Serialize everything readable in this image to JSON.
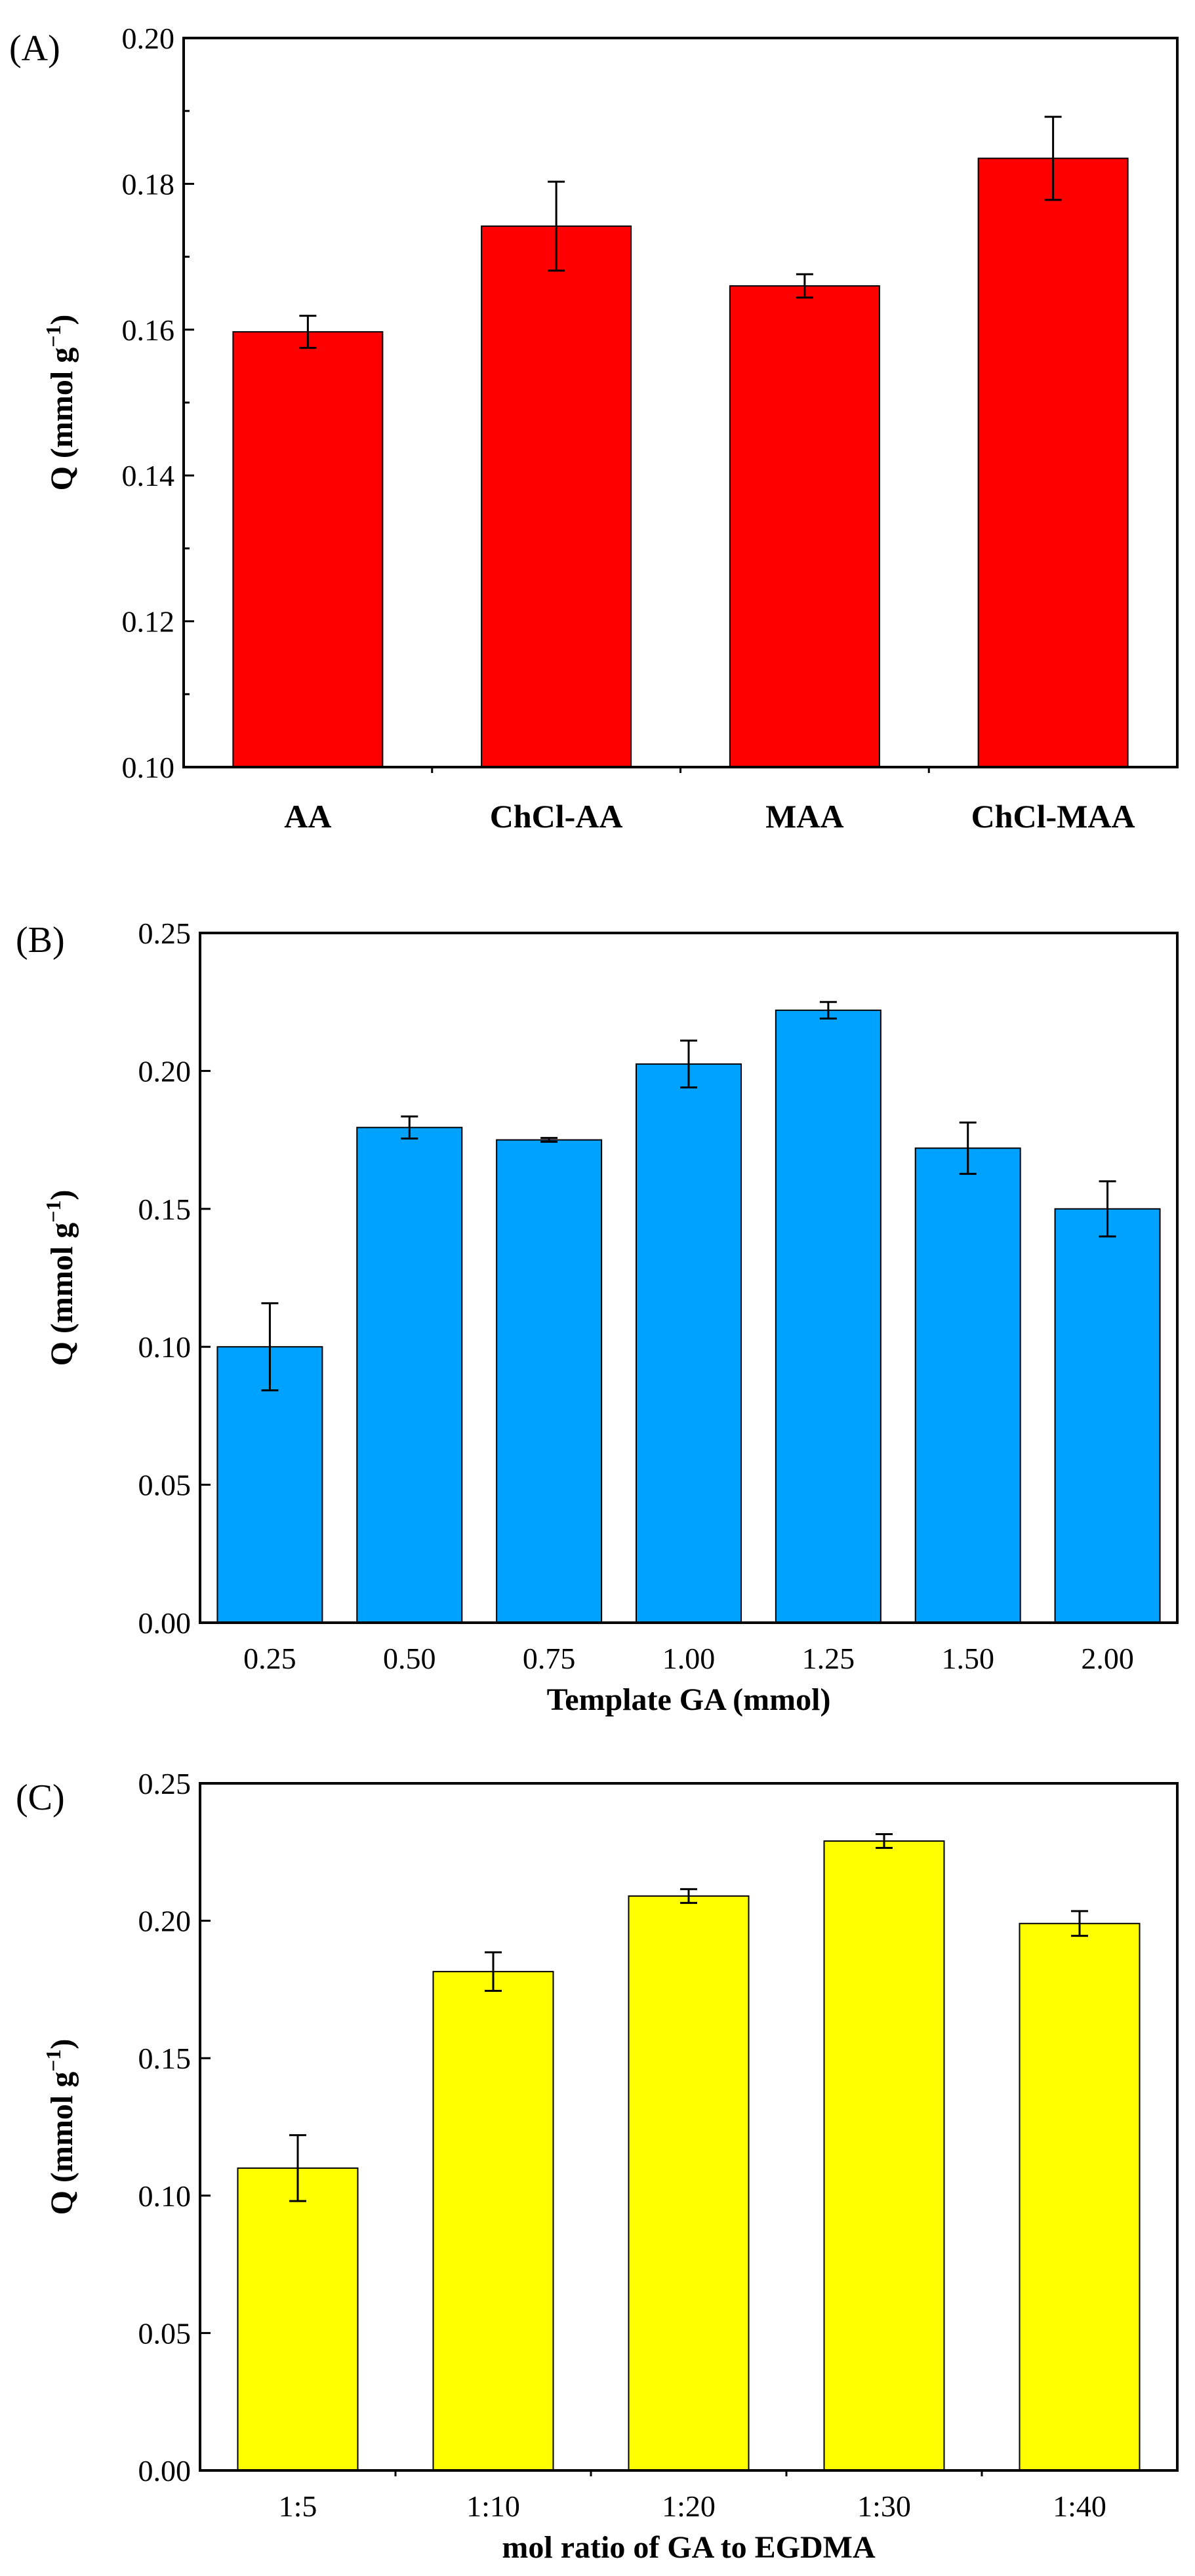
{
  "chart_data": [
    {
      "type": "bar",
      "panel_label": "(A)",
      "ylabel_main": "Q (mmol g",
      "ylabel_sup": "−1",
      "ylabel_close": ")",
      "xlabel": "",
      "ylim": [
        0.1,
        0.2
      ],
      "yticks": [
        "0.10",
        "0.12",
        "0.14",
        "0.16",
        "0.18",
        "0.20"
      ],
      "categories": [
        "AA",
        "ChCl-AA",
        "MAA",
        "ChCl-MAA"
      ],
      "values": [
        0.1597,
        0.1742,
        0.166,
        0.1835
      ],
      "errors": [
        0.0022,
        0.0061,
        0.0016,
        0.0057
      ],
      "bar_color": "#ff0000"
    },
    {
      "type": "bar",
      "panel_label": "(B)",
      "ylabel_main": "Q (mmol g",
      "ylabel_sup": "−1",
      "ylabel_close": ")",
      "xlabel": "Template GA (mmol)",
      "ylim": [
        0.0,
        0.25
      ],
      "yticks": [
        "0.00",
        "0.05",
        "0.10",
        "0.15",
        "0.20",
        "0.25"
      ],
      "categories": [
        "0.25",
        "0.50",
        "0.75",
        "1.00",
        "1.25",
        "1.50",
        "2.00"
      ],
      "values": [
        0.1,
        0.1795,
        0.175,
        0.2025,
        0.222,
        0.172,
        0.15
      ],
      "errors": [
        0.0158,
        0.004,
        0.0007,
        0.0085,
        0.003,
        0.0093,
        0.01
      ],
      "bar_color": "#00a2ff"
    },
    {
      "type": "bar",
      "panel_label": "(C)",
      "ylabel_main": "Q (mmol g",
      "ylabel_sup": "−1",
      "ylabel_close": ")",
      "xlabel": "mol ratio of GA to EGDMA",
      "ylim": [
        0.0,
        0.25
      ],
      "yticks": [
        "0.00",
        "0.05",
        "0.10",
        "0.15",
        "0.20",
        "0.25"
      ],
      "categories": [
        "1:5",
        "1:10",
        "1:20",
        "1:30",
        "1:40"
      ],
      "values": [
        0.11,
        0.1815,
        0.209,
        0.229,
        0.199
      ],
      "errors": [
        0.012,
        0.007,
        0.0025,
        0.0025,
        0.0045
      ],
      "bar_color": "#ffff00"
    }
  ]
}
